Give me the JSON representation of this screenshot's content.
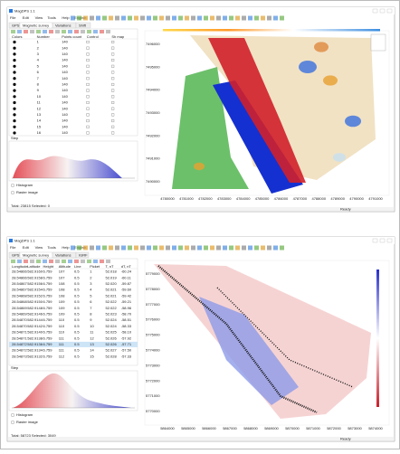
{
  "windows": [
    {
      "title": "MagDPS 1.1",
      "menu": [
        "File",
        "Edit",
        "View",
        "Tools",
        "Help",
        "English"
      ],
      "tabs": [
        "GPS",
        "Magnetic survey",
        "Variations",
        "Shift"
      ],
      "table": {
        "columns": [
          "Colors",
          "Number",
          "Points count",
          "Control",
          "Sh map"
        ],
        "rows": [
          [
            "1",
            "140"
          ],
          [
            "2",
            "140"
          ],
          [
            "3",
            "140"
          ],
          [
            "4",
            "140"
          ],
          [
            "5",
            "140"
          ],
          [
            "6",
            "140"
          ],
          [
            "7",
            "140"
          ],
          [
            "8",
            "140"
          ],
          [
            "9",
            "140"
          ],
          [
            "10",
            "140"
          ],
          [
            "11",
            "140"
          ],
          [
            "12",
            "140"
          ],
          [
            "13",
            "140"
          ],
          [
            "14",
            "140"
          ],
          [
            "15",
            "140"
          ],
          [
            "16",
            "140"
          ]
        ]
      },
      "panel_label": "Step",
      "radio": [
        "Histogram",
        "Raster image"
      ],
      "status": "Total: 23815  Selected: 0",
      "statusbar": "Ready",
      "x_ticks": [
        "4780000",
        "4781000",
        "4782000",
        "4783000",
        "4784000",
        "4785000",
        "4786000",
        "4787000",
        "4788000",
        "4789000",
        "4790000",
        "4791000"
      ],
      "y_ticks": [
        "7496000",
        "7495000",
        "7494000",
        "7493000",
        "7492000",
        "7491000",
        "7490000"
      ]
    },
    {
      "title": "MagDPS 1.1",
      "menu": [
        "File",
        "Edit",
        "View",
        "Tools",
        "Help",
        "English"
      ],
      "tabs": [
        "GPS",
        "Magnetic survey",
        "Variations",
        "IGRF"
      ],
      "table": {
        "columns": [
          "Longitude",
          "Latitude",
          "Height",
          "Altitude",
          "Line",
          "Picket",
          "T, nT",
          "dT, nT"
        ],
        "rows": [
          [
            "28.54866",
            "582.9160",
            "6.759",
            "107",
            "0.5",
            "1",
            "52.018",
            "-60.24"
          ],
          [
            "28.54866",
            "582.9158",
            "6.759",
            "107",
            "0.5",
            "2",
            "52.019",
            "-60.11"
          ],
          [
            "28.54867",
            "582.9156",
            "6.759",
            "108",
            "0.5",
            "3",
            "52.020",
            "-59.87"
          ],
          [
            "28.54867",
            "582.9154",
            "6.759",
            "108",
            "0.5",
            "4",
            "52.021",
            "-59.60"
          ],
          [
            "28.54868",
            "582.9152",
            "6.759",
            "108",
            "0.5",
            "5",
            "52.021",
            "-59.42"
          ],
          [
            "28.54868",
            "582.9150",
            "6.759",
            "109",
            "0.5",
            "6",
            "52.022",
            "-59.21"
          ],
          [
            "28.54869",
            "582.9148",
            "6.759",
            "109",
            "0.5",
            "7",
            "52.022",
            "-58.96"
          ],
          [
            "28.54869",
            "582.9146",
            "6.759",
            "109",
            "0.5",
            "8",
            "52.023",
            "-58.70"
          ],
          [
            "28.54870",
            "582.9144",
            "6.759",
            "110",
            "0.5",
            "9",
            "52.024",
            "-58.51"
          ],
          [
            "28.54870",
            "582.9142",
            "6.759",
            "110",
            "0.5",
            "10",
            "52.024",
            "-58.33"
          ],
          [
            "28.54871",
            "582.9140",
            "6.759",
            "110",
            "0.5",
            "11",
            "52.025",
            "-58.10"
          ],
          [
            "28.54871",
            "582.9138",
            "6.759",
            "111",
            "0.5",
            "12",
            "52.026",
            "-57.92"
          ],
          [
            "28.54872",
            "582.9136",
            "6.759",
            "111",
            "0.5",
            "13",
            "52.026",
            "-57.71"
          ],
          [
            "28.54872",
            "582.9134",
            "6.759",
            "111",
            "0.5",
            "14",
            "52.027",
            "-57.50"
          ],
          [
            "28.54873",
            "582.9132",
            "6.759",
            "112",
            "0.5",
            "15",
            "52.028",
            "-57.33"
          ]
        ]
      },
      "panel_label": "Step",
      "radio": [
        "Histogram",
        "Raster image"
      ],
      "status": "Total: 58723  Selected: 3049",
      "statusbar": "Ready",
      "x_ticks": [
        "5864000",
        "5865000",
        "5866000",
        "5867000",
        "5868000",
        "5869000",
        "5870000",
        "5871000",
        "5872000",
        "5873000",
        "5874000"
      ],
      "y_ticks": [
        "5779000",
        "5778000",
        "5777000",
        "5776000",
        "5775000",
        "5774000",
        "5773000",
        "5772000",
        "5771000",
        "5770000"
      ]
    }
  ]
}
